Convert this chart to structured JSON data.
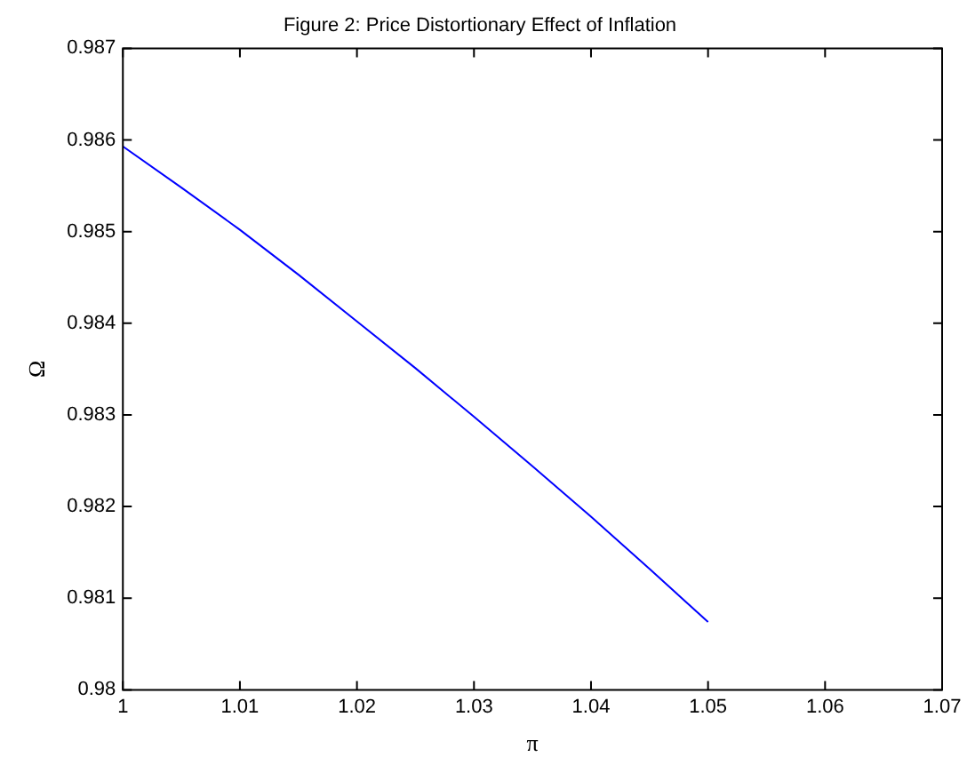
{
  "chart_data": {
    "type": "line",
    "title": "Figure 2: Price Distortionary Effect of Inflation",
    "xlabel": "π",
    "ylabel": "Ω",
    "x": [
      1,
      1.005,
      1.01,
      1.015,
      1.02,
      1.025,
      1.03,
      1.035,
      1.04,
      1.045,
      1.05
    ],
    "series": [
      {
        "color": "#0000ff",
        "values": [
          0.98593,
          0.98548,
          0.98502,
          0.98453,
          0.98402,
          0.98351,
          0.98298,
          0.98244,
          0.98189,
          0.98132,
          0.98074
        ]
      }
    ],
    "xlim": [
      1,
      1.07
    ],
    "xticks": [
      1,
      1.01,
      1.02,
      1.03,
      1.04,
      1.05,
      1.06,
      1.07
    ],
    "ylim": [
      0.98,
      0.987
    ],
    "yticks": [
      0.98,
      0.981,
      0.982,
      0.983,
      0.984,
      0.985,
      0.986,
      0.987
    ],
    "grid": false,
    "legend": false,
    "marker": "none",
    "line_style": "solid"
  }
}
